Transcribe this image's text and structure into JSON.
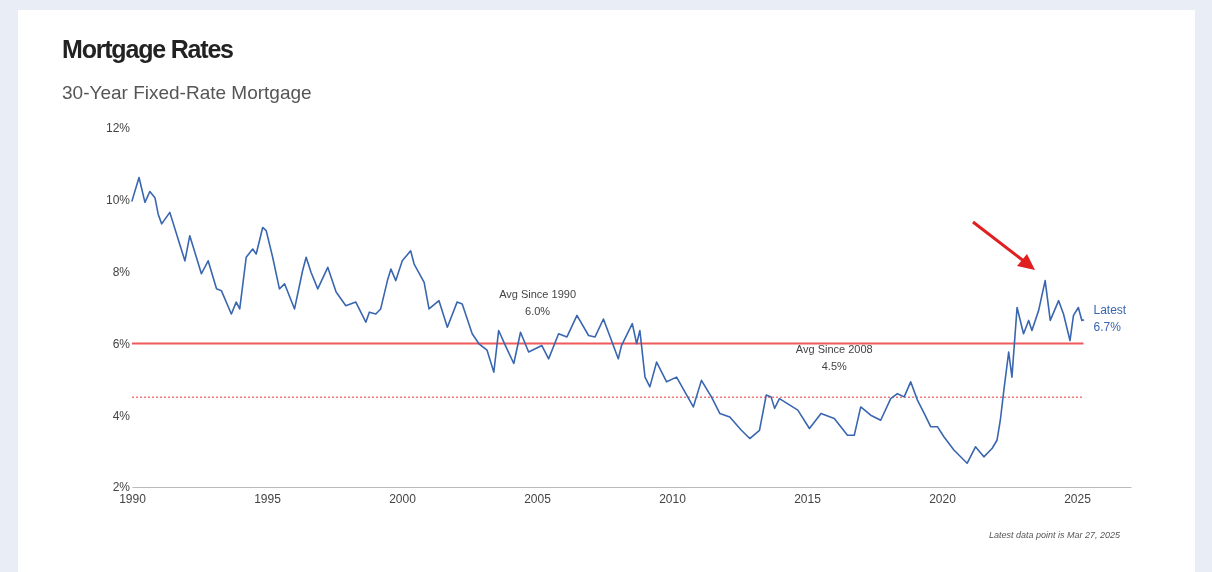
{
  "chart_data": {
    "type": "line",
    "title": "Mortgage Rates",
    "subtitle": "30-Year Fixed-Rate Mortgage",
    "xlim": [
      1990,
      2027
    ],
    "xticks": [
      1990,
      1995,
      2000,
      2005,
      2010,
      2015,
      2020,
      2025
    ],
    "ylim": [
      2,
      12
    ],
    "yticks": [
      {
        "value": 2,
        "label": "2%"
      },
      {
        "value": 4,
        "label": "4%"
      },
      {
        "value": 6,
        "label": "6%"
      },
      {
        "value": 8,
        "label": "8%"
      },
      {
        "value": 10,
        "label": "10%"
      },
      {
        "value": 12,
        "label": "12%"
      }
    ],
    "grid": false,
    "series": [
      {
        "color": "#3a66b0",
        "x": [
          1990.0,
          1990.26,
          1990.48,
          1990.66,
          1990.85,
          1990.97,
          1991.1,
          1991.4,
          1991.71,
          1991.96,
          1992.14,
          1992.57,
          1992.82,
          1993.13,
          1993.31,
          1993.68,
          1993.86,
          1993.99,
          1994.23,
          1994.47,
          1994.6,
          1994.84,
          1994.97,
          1995.21,
          1995.46,
          1995.65,
          1996.02,
          1996.32,
          1996.45,
          1996.63,
          1996.88,
          1997.25,
          1997.56,
          1997.92,
          1998.29,
          1998.66,
          1998.79,
          1999.03,
          1999.21,
          1999.46,
          1999.59,
          1999.77,
          2000.01,
          2000.32,
          2000.45,
          2000.82,
          2001.0,
          2001.37,
          2001.68,
          2002.04,
          2002.23,
          2002.6,
          2002.85,
          2003.15,
          2003.4,
          2003.58,
          2003.83,
          2004.14,
          2004.39,
          2004.69,
          2005.18,
          2005.43,
          2005.8,
          2006.11,
          2006.48,
          2006.91,
          2007.15,
          2007.46,
          2007.71,
          2008.01,
          2008.13,
          2008.53,
          2008.69,
          2008.81,
          2009.0,
          2009.18,
          2009.43,
          2009.8,
          2010.17,
          2010.79,
          2011.09,
          2011.46,
          2011.77,
          2012.14,
          2012.57,
          2012.88,
          2013.24,
          2013.49,
          2013.67,
          2013.8,
          2013.98,
          2014.66,
          2015.09,
          2015.52,
          2016.01,
          2016.5,
          2016.75,
          2016.99,
          2017.36,
          2017.73,
          2018.1,
          2018.35,
          2018.6,
          2018.84,
          2019.09,
          2019.34,
          2019.58,
          2019.83,
          2020.07,
          2020.44,
          2020.93,
          2021.24,
          2021.55,
          2021.86,
          2022.04,
          2022.16,
          2022.29,
          2022.47,
          2022.59,
          2022.78,
          2023.02,
          2023.21,
          2023.33,
          2023.58,
          2023.82,
          2024.01,
          2024.32,
          2024.5,
          2024.74,
          2024.87,
          2025.05,
          2025.18,
          2025.24
        ],
        "values": [
          9.97,
          10.62,
          9.93,
          10.23,
          10.06,
          9.6,
          9.33,
          9.65,
          8.9,
          8.3,
          9.0,
          7.94,
          8.3,
          7.52,
          7.47,
          6.82,
          7.15,
          6.96,
          8.4,
          8.63,
          8.49,
          9.23,
          9.14,
          8.4,
          7.52,
          7.66,
          6.96,
          8.03,
          8.4,
          7.98,
          7.52,
          8.12,
          7.43,
          7.05,
          7.15,
          6.59,
          6.87,
          6.82,
          6.96,
          7.75,
          8.07,
          7.75,
          8.3,
          8.58,
          8.21,
          7.7,
          6.96,
          7.19,
          6.45,
          7.15,
          7.1,
          6.27,
          5.99,
          5.81,
          5.2,
          6.36,
          5.94,
          5.44,
          6.31,
          5.76,
          5.94,
          5.57,
          6.27,
          6.18,
          6.78,
          6.22,
          6.18,
          6.68,
          6.18,
          5.57,
          5.94,
          6.55,
          5.99,
          6.36,
          5.06,
          4.79,
          5.48,
          4.93,
          5.06,
          4.23,
          4.97,
          4.51,
          4.05,
          3.95,
          3.58,
          3.35,
          3.58,
          4.56,
          4.51,
          4.19,
          4.46,
          4.14,
          3.63,
          4.05,
          3.91,
          3.44,
          3.44,
          4.23,
          4.0,
          3.86,
          4.46,
          4.6,
          4.51,
          4.93,
          4.42,
          4.05,
          3.68,
          3.68,
          3.4,
          3.03,
          2.66,
          3.12,
          2.84,
          3.08,
          3.31,
          3.86,
          4.69,
          5.76,
          5.06,
          7.0,
          6.27,
          6.64,
          6.36,
          6.92,
          7.75,
          6.64,
          7.19,
          6.82,
          6.08,
          6.78,
          7.0,
          6.64,
          6.65
        ]
      }
    ],
    "ref_lines": [
      {
        "axis": "y",
        "value": 6.0,
        "label": "Avg Since 1990\n6.0%",
        "color": "#f05a5a",
        "line_style": "solid"
      },
      {
        "axis": "y",
        "value": 4.5,
        "label": "Avg Since 2008\n4.5%",
        "color": "#f07a7a",
        "line_style": "dotted"
      }
    ],
    "annotations": [
      {
        "text": "Latest\n6.7%",
        "x": 2025.24,
        "y": 6.7
      },
      "Latest data point is Mar 27, 2025"
    ]
  }
}
